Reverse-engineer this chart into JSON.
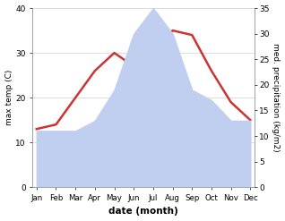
{
  "months": [
    "Jan",
    "Feb",
    "Mar",
    "Apr",
    "May",
    "Jun",
    "Jul",
    "Aug",
    "Sep",
    "Oct",
    "Nov",
    "Dec"
  ],
  "max_temp": [
    13,
    14,
    20,
    26,
    30,
    27,
    30,
    35,
    34,
    26,
    19,
    15
  ],
  "precipitation": [
    11,
    11,
    11,
    13,
    19,
    30,
    35,
    30,
    19,
    17,
    13,
    13
  ],
  "temp_ylim": [
    0,
    40
  ],
  "precip_ylim": [
    0,
    35
  ],
  "precip_fill_color": "#c0cef0",
  "temp_line_color": "#cc3333",
  "xlabel": "date (month)",
  "ylabel_left": "max temp (C)",
  "ylabel_right": "med. precipitation (kg/m2)",
  "background_color": "#ffffff"
}
